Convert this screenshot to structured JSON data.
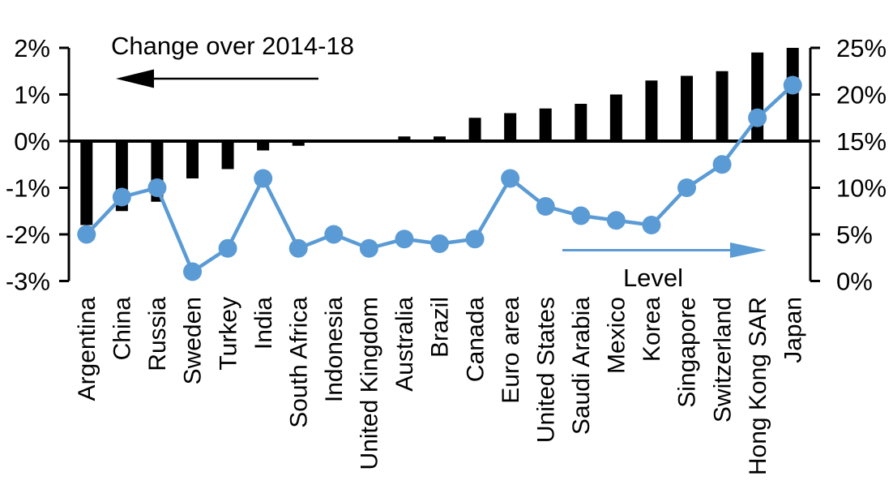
{
  "chart_data": {
    "type": "combo-bar-line",
    "title": "",
    "categories": [
      "Argentina",
      "China",
      "Russia",
      "Sweden",
      "Turkey",
      "India",
      "South Africa",
      "Indonesia",
      "United Kingdom",
      "Australia",
      "Brazil",
      "Canada",
      "Euro area",
      "United States",
      "Saudi Arabia",
      "Mexico",
      "Korea",
      "Singapore",
      "Switzerland",
      "Hong Kong SAR",
      "Japan"
    ],
    "series": [
      {
        "name": "Change over 2014-18",
        "type": "bar",
        "axis": "left",
        "color": "#000000",
        "values": [
          -1.8,
          -1.5,
          -1.3,
          -0.8,
          -0.6,
          -0.2,
          -0.1,
          0,
          0,
          0.1,
          0.1,
          0.5,
          0.6,
          0.7,
          0.8,
          1.0,
          1.3,
          1.4,
          1.5,
          1.9,
          2.0
        ]
      },
      {
        "name": "Level",
        "type": "line",
        "axis": "right",
        "color": "#5B9BD5",
        "values": [
          5,
          9,
          10,
          1,
          3.5,
          11,
          3.5,
          5,
          3.5,
          4.5,
          4,
          4.5,
          11,
          8,
          7,
          6.5,
          6,
          10,
          12.5,
          17.5,
          21
        ]
      }
    ],
    "left_axis": {
      "tick_labels": [
        "2%",
        "1%",
        "0%",
        "-1%",
        "-2%",
        "-3%"
      ],
      "tick_values": [
        2,
        1,
        0,
        -1,
        -2,
        -3
      ],
      "range": [
        -3,
        2
      ]
    },
    "right_axis": {
      "tick_labels": [
        "25%",
        "20%",
        "15%",
        "10%",
        "5%",
        "0%"
      ],
      "tick_values": [
        25,
        20,
        15,
        10,
        5,
        0
      ],
      "range": [
        0,
        25
      ]
    },
    "annotations": [
      {
        "text": "Change over 2014-18",
        "arrow_direction": "left",
        "color": "#000000"
      },
      {
        "text": "Level",
        "arrow_direction": "right",
        "color": "#5B9BD5"
      }
    ],
    "legend_position": "none",
    "grid": false
  }
}
